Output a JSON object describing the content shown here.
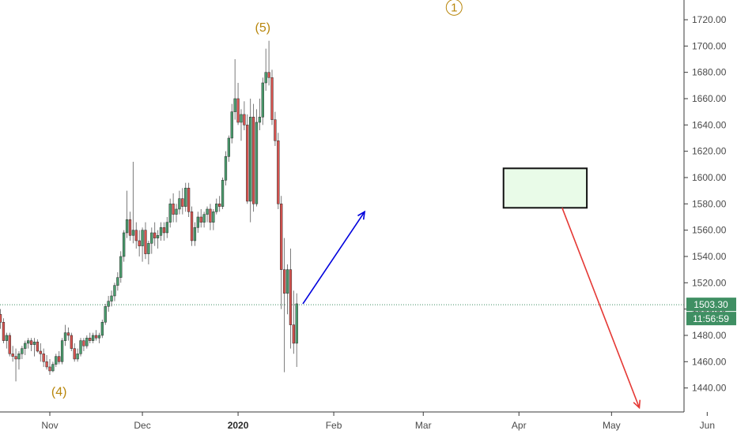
{
  "chart_data": {
    "type": "candlestick",
    "title": "",
    "ylabel": "",
    "xlabel": "",
    "ylim": [
      1425,
      1730
    ],
    "y_ticks": [
      1440,
      1460,
      1480,
      1500,
      1520,
      1540,
      1560,
      1580,
      1600,
      1620,
      1640,
      1660,
      1680,
      1700,
      1720
    ],
    "y_tick_labels": [
      "1440.00",
      "1460.00",
      "1480.00",
      "1500.00",
      "1520.00",
      "1540.00",
      "1560.00",
      "1580.00",
      "1600.00",
      "1620.00",
      "1640.00",
      "1660.00",
      "1680.00",
      "1700.00",
      "1720.00"
    ],
    "x_ticks": [
      {
        "label": "Nov",
        "day": 29,
        "bold": false
      },
      {
        "label": "Dec",
        "day": 59,
        "bold": false
      },
      {
        "label": "2020",
        "day": 90,
        "bold": true
      },
      {
        "label": "Feb",
        "day": 121,
        "bold": false
      },
      {
        "label": "Mar",
        "day": 150,
        "bold": false
      },
      {
        "label": "Apr",
        "day": 181,
        "bold": false
      },
      {
        "label": "May",
        "day": 211,
        "bold": false
      },
      {
        "label": "Jun",
        "day": 242,
        "bold": false
      }
    ],
    "candles": [
      [
        0,
        1498,
        1500,
        1494,
        1495
      ],
      [
        1,
        1495,
        1498,
        1490,
        1497
      ],
      [
        2,
        1497,
        1500,
        1491,
        1493
      ],
      [
        3,
        1493,
        1496,
        1488,
        1494
      ],
      [
        4,
        1494,
        1504,
        1492,
        1502
      ],
      [
        5,
        1502,
        1507,
        1499,
        1501
      ],
      [
        6,
        1501,
        1512,
        1497,
        1510
      ],
      [
        7,
        1510,
        1515,
        1495,
        1498
      ],
      [
        8,
        1498,
        1502,
        1492,
        1495
      ],
      [
        9,
        1495,
        1505,
        1490,
        1503
      ],
      [
        10,
        1503,
        1516,
        1502,
        1515
      ],
      [
        11,
        1515,
        1517,
        1508,
        1513
      ],
      [
        12,
        1513,
        1514,
        1494,
        1496
      ],
      [
        13,
        1496,
        1500,
        1485,
        1490
      ],
      [
        14,
        1490,
        1493,
        1474,
        1476
      ],
      [
        15,
        1476,
        1482,
        1470,
        1480
      ],
      [
        16,
        1480,
        1482,
        1464,
        1466
      ],
      [
        17,
        1466,
        1472,
        1460,
        1464
      ],
      [
        18,
        1464,
        1470,
        1445,
        1462
      ],
      [
        19,
        1462,
        1468,
        1454,
        1466
      ],
      [
        20,
        1466,
        1472,
        1462,
        1470
      ],
      [
        21,
        1470,
        1476,
        1465,
        1474
      ],
      [
        22,
        1474,
        1478,
        1470,
        1476
      ],
      [
        23,
        1476,
        1478,
        1468,
        1473
      ],
      [
        24,
        1473,
        1478,
        1464,
        1475
      ],
      [
        25,
        1475,
        1477,
        1467,
        1468
      ],
      [
        26,
        1468,
        1474,
        1460,
        1466
      ],
      [
        27,
        1466,
        1470,
        1456,
        1460
      ],
      [
        28,
        1460,
        1465,
        1454,
        1456
      ],
      [
        29,
        1456,
        1462,
        1450,
        1453
      ],
      [
        30,
        1453,
        1460,
        1452,
        1458
      ],
      [
        31,
        1458,
        1466,
        1456,
        1464
      ],
      [
        32,
        1464,
        1468,
        1458,
        1460
      ],
      [
        33,
        1460,
        1478,
        1458,
        1476
      ],
      [
        34,
        1476,
        1488,
        1472,
        1482
      ],
      [
        35,
        1482,
        1486,
        1476,
        1480
      ],
      [
        36,
        1480,
        1482,
        1468,
        1470
      ],
      [
        37,
        1470,
        1474,
        1460,
        1462
      ],
      [
        38,
        1462,
        1470,
        1460,
        1466
      ],
      [
        39,
        1466,
        1478,
        1464,
        1476
      ],
      [
        40,
        1476,
        1478,
        1468,
        1472
      ],
      [
        41,
        1472,
        1480,
        1470,
        1478
      ],
      [
        42,
        1478,
        1482,
        1474,
        1476
      ],
      [
        43,
        1476,
        1482,
        1474,
        1480
      ],
      [
        44,
        1480,
        1484,
        1476,
        1478
      ],
      [
        45,
        1478,
        1482,
        1474,
        1480
      ],
      [
        46,
        1480,
        1492,
        1478,
        1490
      ],
      [
        47,
        1490,
        1504,
        1488,
        1502
      ],
      [
        48,
        1502,
        1510,
        1498,
        1506
      ],
      [
        49,
        1506,
        1514,
        1502,
        1510
      ],
      [
        50,
        1510,
        1520,
        1506,
        1518
      ],
      [
        51,
        1518,
        1528,
        1514,
        1524
      ],
      [
        52,
        1524,
        1544,
        1520,
        1540
      ],
      [
        53,
        1540,
        1560,
        1536,
        1558
      ],
      [
        54,
        1558,
        1590,
        1554,
        1568
      ],
      [
        55,
        1568,
        1574,
        1552,
        1556
      ],
      [
        56,
        1556,
        1612,
        1550,
        1560
      ],
      [
        57,
        1560,
        1566,
        1546,
        1552
      ],
      [
        58,
        1552,
        1560,
        1540,
        1548
      ],
      [
        59,
        1548,
        1562,
        1536,
        1560
      ],
      [
        60,
        1560,
        1566,
        1538,
        1542
      ],
      [
        61,
        1542,
        1552,
        1534,
        1550
      ],
      [
        62,
        1550,
        1562,
        1542,
        1558
      ],
      [
        63,
        1558,
        1566,
        1548,
        1554
      ],
      [
        64,
        1554,
        1560,
        1546,
        1556
      ],
      [
        65,
        1556,
        1566,
        1552,
        1562
      ],
      [
        66,
        1562,
        1566,
        1552,
        1558
      ],
      [
        67,
        1558,
        1570,
        1554,
        1566
      ],
      [
        68,
        1566,
        1584,
        1562,
        1580
      ],
      [
        69,
        1580,
        1588,
        1566,
        1572
      ],
      [
        70,
        1572,
        1580,
        1566,
        1576
      ],
      [
        71,
        1576,
        1590,
        1572,
        1584
      ],
      [
        72,
        1584,
        1592,
        1572,
        1578
      ],
      [
        73,
        1578,
        1596,
        1574,
        1592
      ],
      [
        74,
        1592,
        1596,
        1570,
        1574
      ],
      [
        75,
        1574,
        1578,
        1548,
        1552
      ],
      [
        76,
        1552,
        1566,
        1548,
        1562
      ],
      [
        77,
        1562,
        1574,
        1558,
        1570
      ],
      [
        78,
        1570,
        1576,
        1562,
        1566
      ],
      [
        79,
        1566,
        1574,
        1562,
        1572
      ],
      [
        80,
        1572,
        1578,
        1566,
        1576
      ],
      [
        81,
        1576,
        1580,
        1560,
        1566
      ],
      [
        82,
        1566,
        1576,
        1560,
        1574
      ],
      [
        83,
        1574,
        1584,
        1572,
        1580
      ],
      [
        84,
        1580,
        1586,
        1574,
        1578
      ],
      [
        85,
        1578,
        1600,
        1576,
        1598
      ],
      [
        86,
        1598,
        1620,
        1594,
        1616
      ],
      [
        87,
        1616,
        1632,
        1612,
        1630
      ],
      [
        88,
        1630,
        1656,
        1626,
        1650
      ],
      [
        89,
        1650,
        1690,
        1644,
        1660
      ],
      [
        90,
        1660,
        1672,
        1640,
        1642
      ],
      [
        91,
        1642,
        1652,
        1628,
        1648
      ],
      [
        92,
        1648,
        1658,
        1636,
        1640
      ],
      [
        93,
        1640,
        1648,
        1580,
        1582
      ],
      [
        94,
        1582,
        1660,
        1566,
        1646
      ],
      [
        95,
        1646,
        1656,
        1574,
        1580
      ],
      [
        96,
        1580,
        1652,
        1578,
        1642
      ],
      [
        97,
        1642,
        1660,
        1636,
        1646
      ],
      [
        98,
        1646,
        1676,
        1640,
        1672
      ],
      [
        99,
        1672,
        1698,
        1666,
        1680
      ],
      [
        100,
        1680,
        1704,
        1670,
        1676
      ],
      [
        101,
        1676,
        1682,
        1640,
        1644
      ],
      [
        102,
        1644,
        1650,
        1624,
        1628
      ],
      [
        103,
        1628,
        1634,
        1576,
        1580
      ],
      [
        104,
        1580,
        1586,
        1500,
        1530
      ],
      [
        105,
        1530,
        1554,
        1452,
        1512
      ],
      [
        106,
        1512,
        1534,
        1496,
        1530
      ],
      [
        107,
        1530,
        1546,
        1470,
        1488
      ],
      [
        108,
        1488,
        1514,
        1466,
        1474
      ],
      [
        109,
        1474,
        1512,
        1456,
        1504
      ]
    ],
    "current_price": 1503.3,
    "current_price_label": "1503.30",
    "countdown_label": "11:56:59",
    "target_box": {
      "x0": 176,
      "x1": 203,
      "y0": 1577,
      "y1": 1607
    },
    "arrows": [
      {
        "name": "up-projection-arrow",
        "color": "#0000dd",
        "from": {
          "day": 111,
          "price": 1504
        },
        "to": {
          "day": 131,
          "price": 1574
        }
      },
      {
        "name": "down-projection-arrow",
        "color": "#e53935",
        "from": {
          "day": 195,
          "price": 1577
        },
        "to": {
          "day": 220,
          "price": 1425
        }
      }
    ],
    "wave_labels": [
      {
        "name": "wave-label-5",
        "text": "(5)",
        "day": 98,
        "price": 1711
      },
      {
        "name": "wave-label-4",
        "text": "(4)",
        "day": 32,
        "price": 1434
      }
    ],
    "wave_circle": {
      "text": "1",
      "day": 160,
      "price": 1727
    },
    "colors": {
      "up": "#4a9e6e",
      "down": "#d9534f",
      "wick": "#6b6b6b",
      "axis": "#3a3a3a",
      "price_tag": "#3f8f63",
      "box_fill": "#e9fbe8",
      "dotted": "#3f8f63",
      "wave": "#b8860b"
    }
  }
}
